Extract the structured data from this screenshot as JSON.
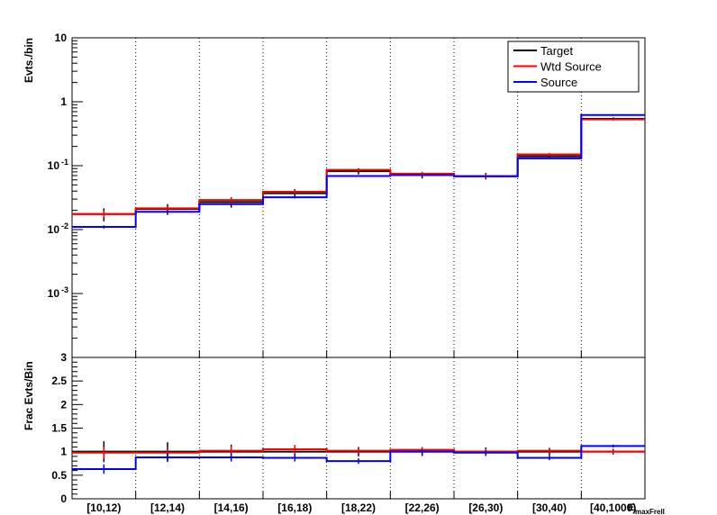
{
  "chart_data": [
    {
      "type": "step",
      "panel": "top",
      "ylabel": "Evts./bin",
      "yscale": "log",
      "ylim": [
        0.0001,
        10
      ],
      "yticks": [
        {
          "value": 10,
          "label": "10"
        },
        {
          "value": 1,
          "label": "1"
        },
        {
          "value": 0.1,
          "label": "10",
          "exp": "-1"
        },
        {
          "value": 0.01,
          "label": "10",
          "exp": "-2"
        },
        {
          "value": 0.001,
          "label": "10",
          "exp": "-3"
        }
      ],
      "categories": [
        "[10,12)",
        "[12,14)",
        "[14,16)",
        "[16,18)",
        "[18,22)",
        "[22,26)",
        "[26,30)",
        "[30,40)",
        "[40,1000)"
      ],
      "series": [
        {
          "name": "Target",
          "color": "#000000",
          "values": [
            0.0175,
            0.021,
            0.027,
            0.037,
            0.082,
            0.071,
            0.069,
            0.14,
            0.54
          ],
          "errors": [
            0.004,
            0.004,
            0.005,
            0.006,
            0.009,
            0.008,
            0.008,
            0.012,
            0.03
          ]
        },
        {
          "name": "Wtd Source",
          "color": "#ff0000",
          "values": [
            0.0175,
            0.0215,
            0.029,
            0.039,
            0.086,
            0.075,
            0.069,
            0.15,
            0.53
          ],
          "errors": [
            0.002,
            0.002,
            0.003,
            0.003,
            0.005,
            0.005,
            0.005,
            0.008,
            0.02
          ]
        },
        {
          "name": "Source",
          "color": "#0000ff",
          "values": [
            0.011,
            0.019,
            0.025,
            0.032,
            0.069,
            0.071,
            0.068,
            0.13,
            0.62
          ],
          "errors": [
            0.0006,
            0.0008,
            0.001,
            0.0012,
            0.002,
            0.002,
            0.002,
            0.003,
            0.01
          ]
        }
      ],
      "legend": {
        "placement": "top-right",
        "entries": [
          "Target",
          "Wtd Source",
          "Source"
        ]
      }
    },
    {
      "type": "step",
      "panel": "bottom",
      "ylabel": "Frac Evts/Bin",
      "xlabel": "E",
      "xlabel_sub": "maxFrell",
      "ylim": [
        0,
        3
      ],
      "yticks": [
        {
          "value": 0,
          "label": "0"
        },
        {
          "value": 0.5,
          "label": "0.5"
        },
        {
          "value": 1,
          "label": "1"
        },
        {
          "value": 1.5,
          "label": "1.5"
        },
        {
          "value": 2,
          "label": "2"
        },
        {
          "value": 2.5,
          "label": "2.5"
        },
        {
          "value": 3,
          "label": "3"
        }
      ],
      "categories": [
        "[10,12)",
        "[12,14)",
        "[14,16)",
        "[16,18)",
        "[18,22)",
        "[22,26)",
        "[26,30)",
        "[30,40)",
        "[40,1000)"
      ],
      "series": [
        {
          "name": "Target",
          "color": "#000000",
          "values": [
            1.0,
            1.0,
            1.0,
            1.0,
            1.0,
            1.0,
            1.0,
            1.0,
            1.0
          ],
          "errors": [
            0.22,
            0.2,
            0.15,
            0.14,
            0.1,
            0.09,
            0.09,
            0.08,
            0.06
          ]
        },
        {
          "name": "Wtd Source",
          "color": "#ff0000",
          "values": [
            0.98,
            0.98,
            1.02,
            1.05,
            1.02,
            1.04,
            1.0,
            1.02,
            1.0
          ],
          "errors": [
            0.12,
            0.11,
            0.1,
            0.09,
            0.06,
            0.06,
            0.06,
            0.05,
            0.04
          ]
        },
        {
          "name": "Source",
          "color": "#0000ff",
          "values": [
            0.63,
            0.88,
            0.88,
            0.87,
            0.8,
            1.0,
            0.98,
            0.87,
            1.12
          ],
          "errors": [
            0.1,
            0.1,
            0.09,
            0.08,
            0.06,
            0.05,
            0.05,
            0.05,
            0.03
          ]
        }
      ]
    }
  ]
}
